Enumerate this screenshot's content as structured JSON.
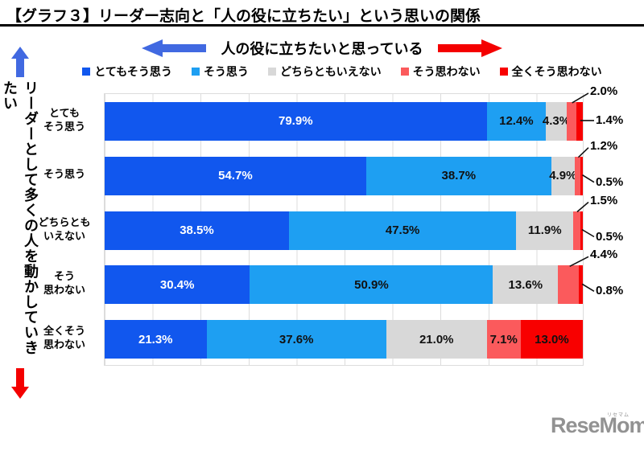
{
  "title": "【グラフ３】リーダー志向と「人の役に立ちたい」という思いの関係",
  "header": {
    "arrow_label": "人の役に立ちたいと思っている"
  },
  "y_axis_label": "リーダーとして多くの人を動かしていきたい",
  "colors": {
    "arrow_blue": "#4169e1",
    "arrow_red": "#f40000",
    "grid": "#dcdcdc",
    "title_rule": "#000000",
    "logo_gray": "#929292"
  },
  "chart_data": {
    "type": "bar",
    "stacked": true,
    "orientation": "horizontal",
    "unit": "%",
    "xlim": [
      0,
      100
    ],
    "gridline_step": 10,
    "grid": true,
    "legend_position": "top",
    "categories": [
      "とてもそう思う",
      "そう思う",
      "どちらともいえない",
      "そう思わない",
      "全くそう思わない"
    ],
    "series": [
      {
        "name": "とてもそう思う",
        "color": "#1157ee",
        "values": [
          79.9,
          54.7,
          38.5,
          30.4,
          21.3
        ]
      },
      {
        "name": "そう思う",
        "color": "#1e9ff2",
        "values": [
          12.4,
          38.7,
          47.5,
          50.9,
          37.6
        ]
      },
      {
        "name": "どちらともいえない",
        "color": "#d8d8d8",
        "values": [
          4.3,
          4.9,
          11.9,
          13.6,
          21.0
        ]
      },
      {
        "name": "そう思わない",
        "color": "#fb5a5c",
        "values": [
          2.0,
          1.2,
          1.5,
          4.4,
          7.1
        ]
      },
      {
        "name": "全くそう思わない",
        "color": "#f80000",
        "values": [
          1.4,
          0.5,
          0.5,
          0.8,
          13.0
        ]
      }
    ],
    "rows": [
      {
        "label_lines": [
          "とても",
          "そう思う"
        ],
        "segment_labels": [
          "79.9%",
          "12.4%",
          "4.3%",
          "2.0%",
          "1.4%"
        ],
        "label_inside": [
          true,
          true,
          true,
          false,
          false
        ]
      },
      {
        "label_lines": [
          "そう思う"
        ],
        "segment_labels": [
          "54.7%",
          "38.7%",
          "4.9%",
          "1.2%",
          "0.5%"
        ],
        "label_inside": [
          true,
          true,
          true,
          false,
          false
        ]
      },
      {
        "label_lines": [
          "どちらとも",
          "いえない"
        ],
        "segment_labels": [
          "38.5%",
          "47.5%",
          "11.9%",
          "1.5%",
          "0.5%"
        ],
        "label_inside": [
          true,
          true,
          true,
          false,
          false
        ]
      },
      {
        "label_lines": [
          "そう",
          "思わない"
        ],
        "segment_labels": [
          "30.4%",
          "50.9%",
          "13.6%",
          "4.4%",
          "0.8%"
        ],
        "label_inside": [
          true,
          true,
          true,
          false,
          false
        ]
      },
      {
        "label_lines": [
          "全くそう",
          "思わない"
        ],
        "segment_labels": [
          "21.3%",
          "37.6%",
          "21.0%",
          "7.1%",
          "13.0%"
        ],
        "label_inside": [
          true,
          true,
          true,
          true,
          true
        ]
      }
    ]
  },
  "logo": {
    "text": "ReseMom.",
    "ruby": "リセマム"
  }
}
